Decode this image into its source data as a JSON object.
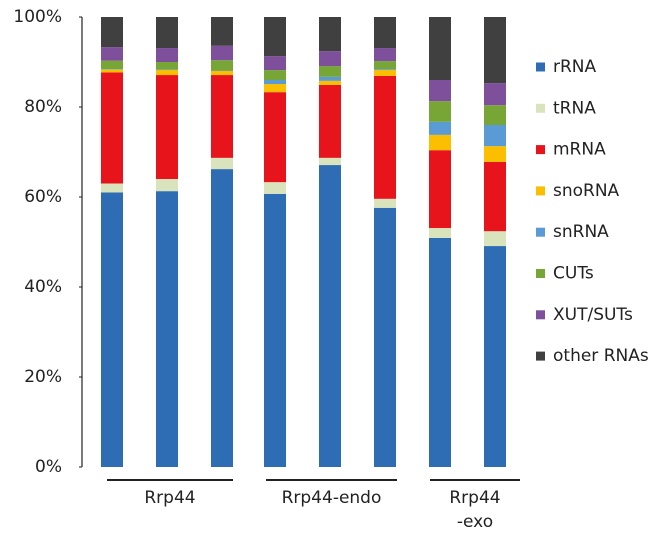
{
  "chart_data": {
    "type": "stacked_bar",
    "categories": [
      null,
      null,
      null,
      null,
      null,
      null,
      null,
      null
    ],
    "group_labels": [
      [
        "Rrp44"
      ],
      [
        "Rrp44-endo"
      ],
      [
        "Rrp44",
        "-exo"
      ]
    ],
    "series": [
      {
        "name": "rRNA",
        "color": "#2e6db4",
        "values": [
          61,
          61.3,
          66.2,
          60.7,
          67.1,
          57.6,
          50.9,
          49.1
        ]
      },
      {
        "name": "tRNA",
        "color": "#d9e4bd",
        "values": [
          2,
          2.7,
          2.5,
          2.6,
          1.6,
          2,
          2.2,
          3.3
        ]
      },
      {
        "name": "mRNA",
        "color": "#e8141c",
        "values": [
          24.7,
          23.1,
          18.4,
          20,
          16.2,
          27.3,
          17.3,
          15.4
        ]
      },
      {
        "name": "snoRNA",
        "color": "#fbbf00",
        "values": [
          0.6,
          1.1,
          0.9,
          1.8,
          0.9,
          1.3,
          3.4,
          3.5
        ]
      },
      {
        "name": "snRNA",
        "color": "#5b9bd5",
        "values": [
          0.1,
          0.1,
          0.1,
          0.9,
          0.9,
          0.2,
          2.9,
          4.7
        ]
      },
      {
        "name": "CUTs",
        "color": "#77a536",
        "values": [
          1.9,
          1.7,
          2.3,
          2.2,
          2.4,
          1.8,
          4.6,
          4.4
        ]
      },
      {
        "name": "XUT/SUTs",
        "color": "#7e4f9b",
        "values": [
          3,
          3.1,
          3.2,
          3.1,
          3.3,
          2.9,
          4.7,
          4.9
        ]
      },
      {
        "name": "other RNAs",
        "color": "#404040",
        "values": [
          6.7,
          6.9,
          6.4,
          8.7,
          7.6,
          6.9,
          14,
          14.7
        ]
      }
    ],
    "ylim": [
      0,
      100
    ],
    "yticks": [
      {
        "value": 0,
        "label": "0%"
      },
      {
        "value": 20,
        "label": "20%"
      },
      {
        "value": 40,
        "label": "40%"
      },
      {
        "value": 60,
        "label": "60%"
      },
      {
        "value": 80,
        "label": "80%"
      },
      {
        "value": 100,
        "label": "100%"
      }
    ],
    "legend": "right"
  }
}
